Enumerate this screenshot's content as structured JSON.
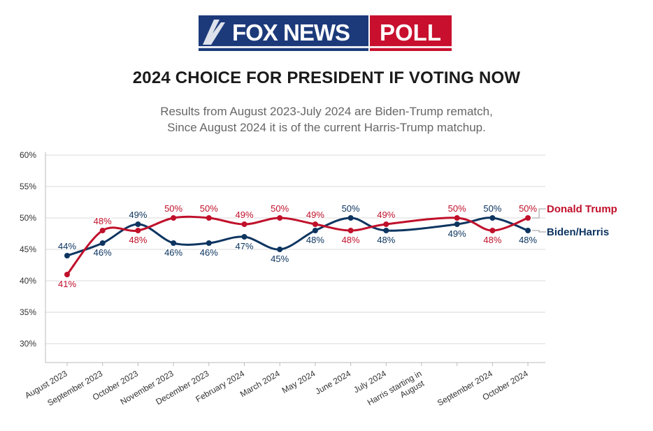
{
  "logo": {
    "brand_text": "FOX NEWS",
    "poll_text": "POLL"
  },
  "title": "2024 CHOICE FOR PRESIDENT IF VOTING NOW",
  "subtitle_lines": [
    "Results from August 2023-July 2024 are Biden-Trump rematch,",
    "Since August 2024 it is of the current Harris-Trump matchup."
  ],
  "colors": {
    "trump": "#c0102b",
    "democrat": "#0d3560",
    "grid": "#d9d9d9",
    "logo_blue": "#1c3a7a",
    "logo_red": "#c8102e"
  },
  "chart_data": {
    "type": "line",
    "categories": [
      "August 2023",
      "September 2023",
      "October 2023",
      "November 2023",
      "December 2023",
      "February 2024",
      "March 2024",
      "May 2024",
      "June 2024",
      "July 2024",
      "Harris starting in August",
      "",
      "September 2024",
      "October 2024"
    ],
    "series": [
      {
        "name": "Donald Trump",
        "color": "#c0102b",
        "values": [
          41,
          48,
          48,
          50,
          50,
          49,
          50,
          49,
          48,
          49,
          null,
          50,
          48,
          50
        ],
        "labels": [
          "41%",
          "48%",
          "48%",
          "50%",
          "50%",
          "49%",
          "50%",
          "49%",
          "48%",
          "49%",
          "",
          "50%",
          "48%",
          "50%"
        ]
      },
      {
        "name": "Biden/Harris",
        "color": "#0d3560",
        "values": [
          44,
          46,
          49,
          46,
          46,
          47,
          45,
          48,
          50,
          48,
          null,
          49,
          50,
          48
        ],
        "labels": [
          "44%",
          "46%",
          "49%",
          "46%",
          "46%",
          "47%",
          "45%",
          "48%",
          "50%",
          "48%",
          "",
          "49%",
          "50%",
          "48%"
        ]
      }
    ],
    "y_ticks": [
      "30%",
      "35%",
      "40%",
      "45%",
      "50%",
      "55%",
      "60%"
    ],
    "ylim": [
      27,
      60
    ],
    "grid": true,
    "legend_placement": "right, inline at line ends"
  }
}
